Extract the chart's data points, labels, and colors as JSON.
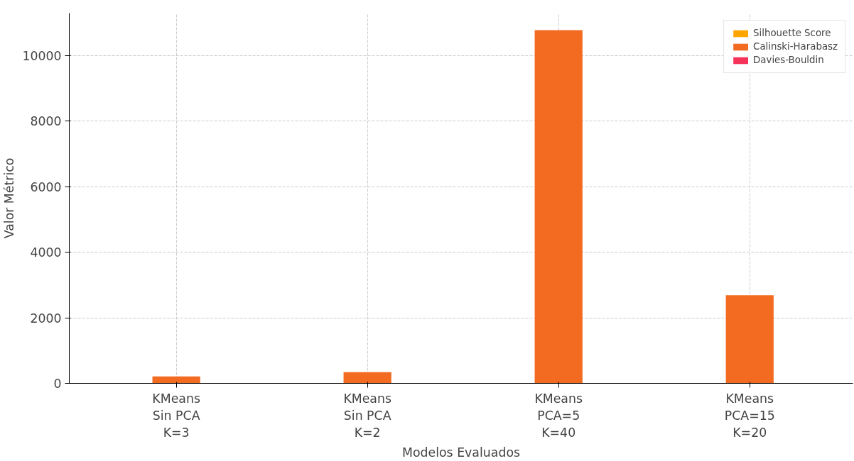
{
  "chart_data": {
    "type": "bar",
    "xlabel": "Modelos Evaluados",
    "ylabel": "Valor Métrico",
    "categories": [
      "KMeans\nSin PCA\nK=3",
      "KMeans\nSin PCA\nK=2",
      "KMeans\nPCA=5\nK=40",
      "KMeans\nPCA=15\nK=20"
    ],
    "series": [
      {
        "name": "Silhouette Score",
        "color": "#ffa500",
        "values": [
          0,
          0,
          0,
          0
        ]
      },
      {
        "name": "Calinski-Harabasz",
        "color": "#f26b21",
        "values": [
          210,
          340,
          10780,
          2690
        ]
      },
      {
        "name": "Davies-Bouldin",
        "color": "#f5325a",
        "values": [
          0,
          0,
          0,
          0
        ]
      }
    ],
    "ylim": [
      0,
      11300
    ],
    "yticks": [
      0,
      2000,
      4000,
      6000,
      8000,
      10000
    ],
    "grid": true,
    "legend": "top right"
  }
}
